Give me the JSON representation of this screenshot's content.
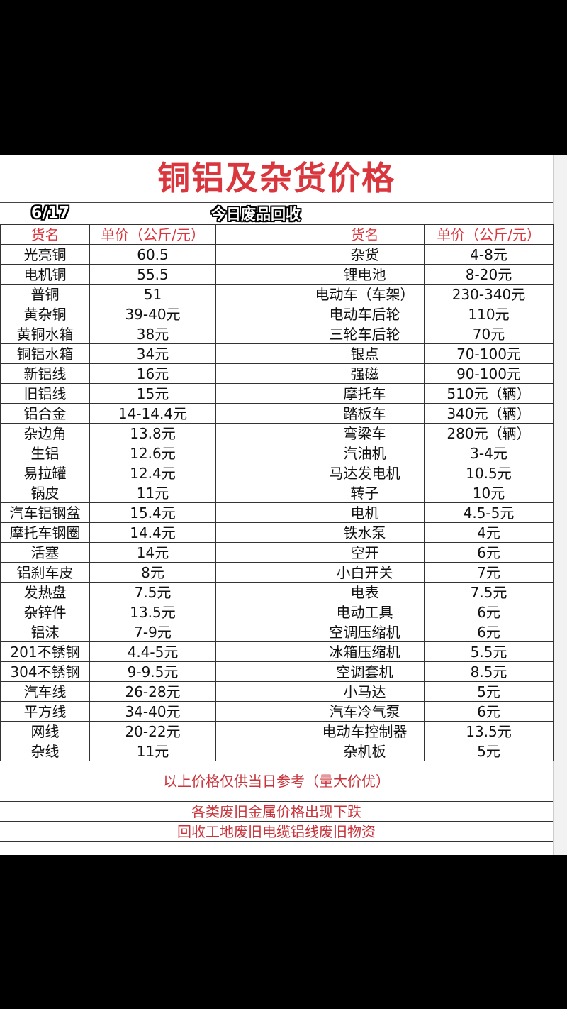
{
  "title": "铜铝及杂货价格",
  "date": "6/17",
  "tagline": "今日废品回收",
  "headers": {
    "name": "货名",
    "price": "单价（公斤/元）"
  },
  "left_items": [
    {
      "name": "光亮铜",
      "price": "60.5"
    },
    {
      "name": "电机铜",
      "price": "55.5"
    },
    {
      "name": "普铜",
      "price": "51"
    },
    {
      "name": "黄杂铜",
      "price": "39-40元"
    },
    {
      "name": "黄铜水箱",
      "price": "38元"
    },
    {
      "name": "铜铝水箱",
      "price": "34元"
    },
    {
      "name": "新铝线",
      "price": "16元"
    },
    {
      "name": "旧铝线",
      "price": "15元"
    },
    {
      "name": "铝合金",
      "price": "14-14.4元"
    },
    {
      "name": "杂边角",
      "price": "13.8元"
    },
    {
      "name": "生铝",
      "price": "12.6元"
    },
    {
      "name": "易拉罐",
      "price": "12.4元"
    },
    {
      "name": "锅皮",
      "price": "11元"
    },
    {
      "name": "汽车铝钢盆",
      "price": "15.4元"
    },
    {
      "name": "摩托车钢圈",
      "price": "14.4元"
    },
    {
      "name": "活塞",
      "price": "14元"
    },
    {
      "name": "铝刹车皮",
      "price": "8元"
    },
    {
      "name": "发热盘",
      "price": "7.5元"
    },
    {
      "name": "杂锌件",
      "price": "13.5元"
    },
    {
      "name": "铝沫",
      "price": "7-9元"
    },
    {
      "name": "201不锈钢",
      "price": "4.4-5元"
    },
    {
      "name": "304不锈钢",
      "price": "9-9.5元"
    },
    {
      "name": "汽车线",
      "price": "26-28元"
    },
    {
      "name": "平方线",
      "price": "34-40元"
    },
    {
      "name": "网线",
      "price": "20-22元"
    },
    {
      "name": "杂线",
      "price": "11元"
    }
  ],
  "right_items": [
    {
      "name": "杂货",
      "price": "4-8元"
    },
    {
      "name": "锂电池",
      "price": "8-20元"
    },
    {
      "name": "电动车（车架）",
      "price": "230-340元"
    },
    {
      "name": "电动车后轮",
      "price": "110元"
    },
    {
      "name": "三轮车后轮",
      "price": "70元"
    },
    {
      "name": "银点",
      "price": "70-100元"
    },
    {
      "name": "强磁",
      "price": "90-100元"
    },
    {
      "name": "摩托车",
      "price": "510元（辆）"
    },
    {
      "name": "踏板车",
      "price": "340元（辆）"
    },
    {
      "name": "弯梁车",
      "price": "280元（辆）"
    },
    {
      "name": "汽油机",
      "price": "3-4元"
    },
    {
      "name": "马达发电机",
      "price": "10.5元"
    },
    {
      "name": "转子",
      "price": "10元"
    },
    {
      "name": "电机",
      "price": "4.5-5元"
    },
    {
      "name": "铁水泵",
      "price": "4元"
    },
    {
      "name": "空开",
      "price": "6元"
    },
    {
      "name": "小白开关",
      "price": "7元"
    },
    {
      "name": "电表",
      "price": "7.5元"
    },
    {
      "name": "电动工具",
      "price": "6元"
    },
    {
      "name": "空调压缩机",
      "price": "6元"
    },
    {
      "name": "冰箱压缩机",
      "price": "5.5元"
    },
    {
      "name": "空调套机",
      "price": "8.5元"
    },
    {
      "name": "小马达",
      "price": "5元"
    },
    {
      "name": "汽车冷气泵",
      "price": "6元"
    },
    {
      "name": "电动车控制器",
      "price": "13.5元"
    },
    {
      "name": "杂机板",
      "price": "5元"
    }
  ],
  "notes": {
    "reference": "以上价格仅供当日参考（量大价优）",
    "line1": "各类废旧金属价格出现下跌",
    "line2": "回收工地废旧电缆铝线废旧物资"
  },
  "colors": {
    "accent_red": "#d9363e",
    "text": "#111111",
    "background": "#ffffff"
  }
}
